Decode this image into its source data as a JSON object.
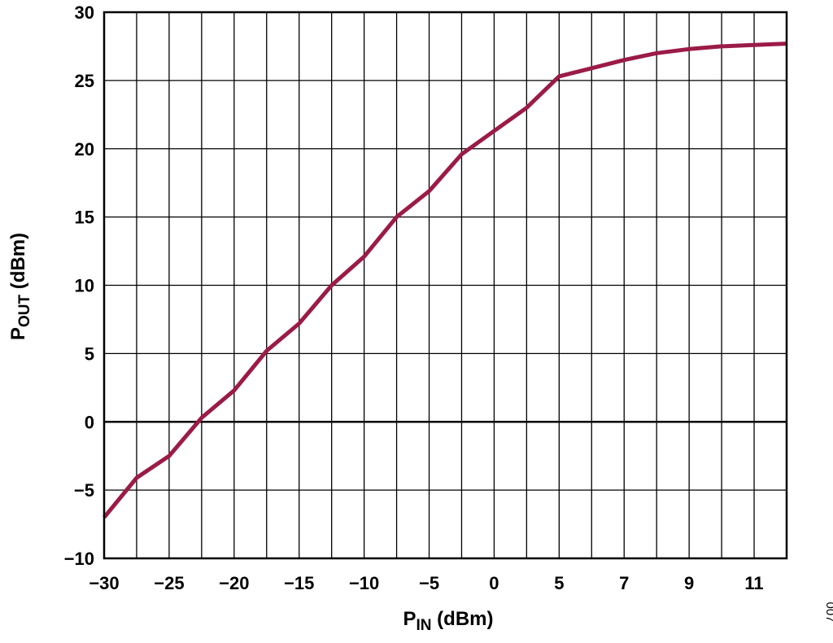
{
  "chart_data": {
    "type": "line",
    "title": "",
    "xlabel": {
      "main": "P",
      "sub": "IN",
      "unit": " (dBm)"
    },
    "ylabel": {
      "main": "P",
      "sub": "OUT",
      "unit": " (dBm)"
    },
    "x_ticks": [
      "−30",
      "−25",
      "−20",
      "−15",
      "−10",
      "−5",
      "0",
      "5",
      "7",
      "9",
      "11"
    ],
    "y_ticks": [
      "−10",
      "−5",
      "0",
      "5",
      "10",
      "15",
      "20",
      "25",
      "30"
    ],
    "ylim": [
      -10,
      30
    ],
    "grid": true,
    "series": [
      {
        "color": "#9b1b48",
        "x": [
          -30,
          -27.5,
          -25,
          -22.5,
          -20,
          -17.5,
          -15,
          -12.5,
          -10,
          -7.5,
          -5,
          -2.5,
          0,
          2.5,
          5,
          6,
          7,
          8,
          9,
          10,
          11,
          12
        ],
        "y": [
          -7.0,
          -4.1,
          -2.5,
          0.3,
          2.3,
          5.2,
          7.2,
          10.0,
          12.1,
          15.0,
          16.9,
          19.6,
          21.3,
          23.0,
          25.3,
          25.9,
          26.5,
          27.0,
          27.3,
          27.5,
          27.6,
          27.7
        ]
      }
    ]
  },
  "figure_id": "007"
}
